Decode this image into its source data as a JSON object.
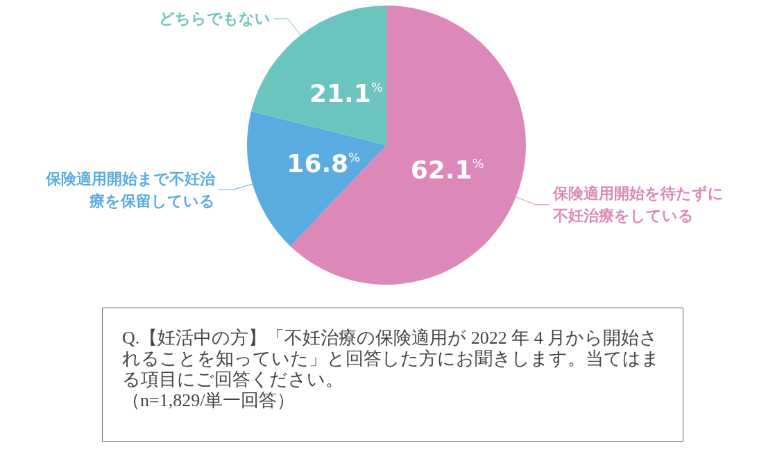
{
  "chart_data": {
    "type": "pie",
    "categories": [
      "保険適用開始を待たずに不妊治療をしている",
      "保険適用開始まで不妊治療を保留している",
      "どちらでもない"
    ],
    "values": [
      62.1,
      16.8,
      21.1
    ],
    "colors": [
      "#dc88b8",
      "#5aabdf",
      "#6cc4be"
    ],
    "value_labels": [
      "62.1%",
      "16.8%",
      "21.1%"
    ],
    "legend": false,
    "annotations": [
      "Q.【妊活中の方】「不妊治療の保険適用が 2022 年 4 月から開始されることを知っていた」と回答した方にお聞きします。当てはまる項目にご回答ください。",
      "（n=1,829/単一回答）"
    ]
  }
}
